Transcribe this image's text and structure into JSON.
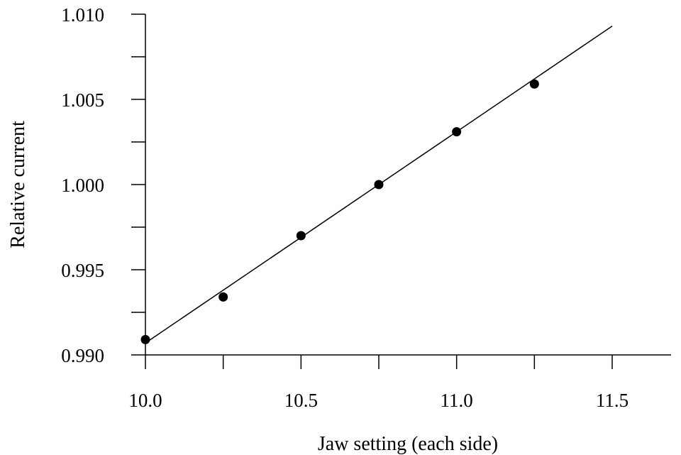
{
  "chart_data": {
    "type": "scatter",
    "xlabel": "Jaw setting (each side)",
    "ylabel": "Relative current",
    "xlim": [
      10.0,
      11.75
    ],
    "ylim": [
      0.99,
      1.01
    ],
    "x_ticks_major": [
      10.0,
      10.5,
      11.0,
      11.5
    ],
    "x_tick_labels": [
      "10.0",
      "10.5",
      "11.0",
      "11.5"
    ],
    "x_ticks_minor": [
      10.25,
      10.75,
      11.25
    ],
    "y_ticks_major": [
      0.99,
      0.995,
      1.0,
      1.005,
      1.01
    ],
    "y_tick_labels": [
      "0.990",
      "0.995",
      "1.000",
      "1.005",
      "1.010"
    ],
    "y_ticks_minor": [
      0.9925,
      0.9975,
      1.0025,
      1.0075
    ],
    "grid": false,
    "series": [
      {
        "points": [
          {
            "x": 10.0,
            "y": 0.9909
          },
          {
            "x": 10.25,
            "y": 0.9934
          },
          {
            "x": 10.5,
            "y": 0.997
          },
          {
            "x": 10.75,
            "y": 1.0
          },
          {
            "x": 11.0,
            "y": 1.0031
          },
          {
            "x": 11.25,
            "y": 1.0059
          }
        ]
      }
    ],
    "fit_line": {
      "x": [
        10.0,
        11.5
      ],
      "y": [
        0.9907,
        1.0093
      ]
    },
    "colors": {
      "marker": "#000000",
      "line": "#000000",
      "axis": "#000000"
    }
  }
}
